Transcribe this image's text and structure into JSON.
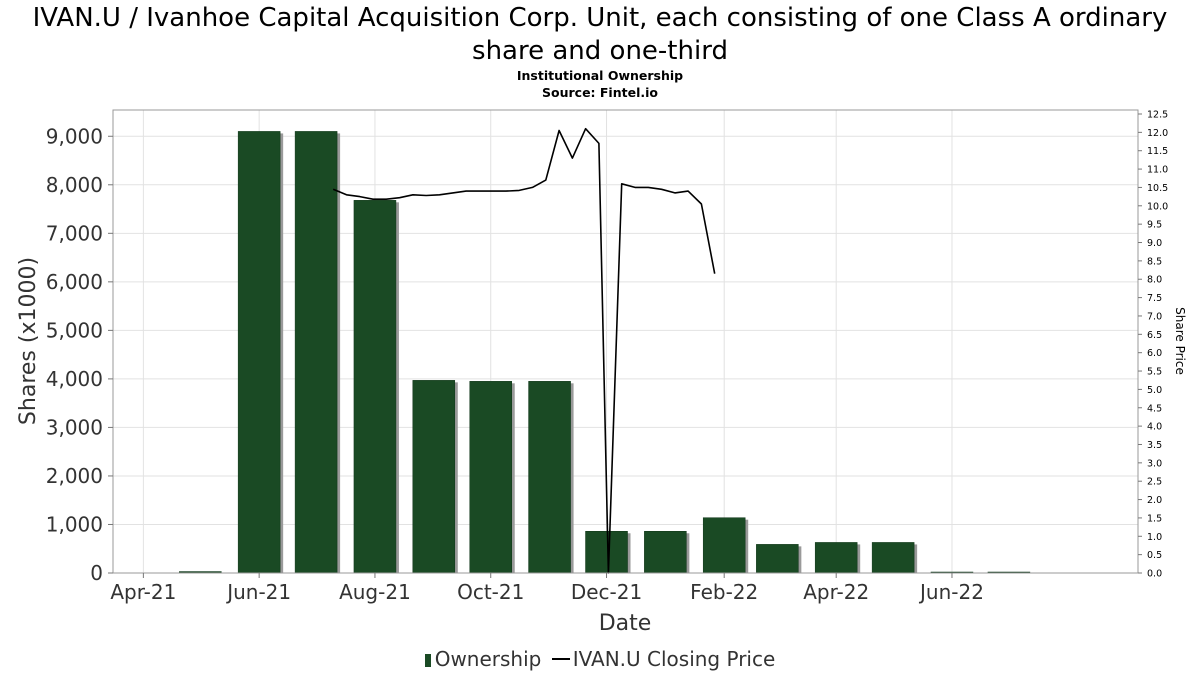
{
  "chart_data": {
    "type": "bar",
    "title": "IVAN.U / Ivanhoe Capital Acquisition Corp. Unit, each consisting of one Class A ordinary share and one-third",
    "subtitle_1": "Institutional Ownership",
    "subtitle_2": "Source: Fintel.io",
    "xlabel": "Date",
    "ylabel": "Shares (x1000)",
    "y2label": "Share Price",
    "ylim": [
      0,
      9500
    ],
    "y2lim": [
      0,
      12.5
    ],
    "grid": true,
    "legend_placement": "bottom-center",
    "x_ticks": [
      {
        "label": "Apr-21",
        "date": "2021-04-01"
      },
      {
        "label": "Jun-21",
        "date": "2021-06-01"
      },
      {
        "label": "Aug-21",
        "date": "2021-08-01"
      },
      {
        "label": "Oct-21",
        "date": "2021-10-01"
      },
      {
        "label": "Dec-21",
        "date": "2021-12-01"
      },
      {
        "label": "Feb-22",
        "date": "2022-02-01"
      },
      {
        "label": "Apr-22",
        "date": "2022-04-01"
      },
      {
        "label": "Jun-22",
        "date": "2022-06-01"
      }
    ],
    "x_range": [
      "2021-03-16",
      "2022-09-07"
    ],
    "y_ticks": [
      "0",
      "1,000",
      "2,000",
      "3,000",
      "4,000",
      "5,000",
      "6,000",
      "7,000",
      "8,000",
      "9,000"
    ],
    "y2_ticks": [
      "0.0",
      "0.5",
      "1.0",
      "1.5",
      "2.0",
      "2.5",
      "3.0",
      "3.5",
      "4.0",
      "4.5",
      "5.0",
      "5.5",
      "6.0",
      "6.5",
      "7.0",
      "7.5",
      "8.0",
      "8.5",
      "9.0",
      "9.5",
      "10.0",
      "10.5",
      "11.0",
      "11.5",
      "12.0",
      "12.5"
    ],
    "series": [
      {
        "name": "Ownership",
        "kind": "bar",
        "color": "#1a4a24",
        "points": [
          {
            "date": "2021-05-01",
            "value": 30
          },
          {
            "date": "2021-06-01",
            "value": 9100
          },
          {
            "date": "2021-07-01",
            "value": 9100
          },
          {
            "date": "2021-08-01",
            "value": 7680
          },
          {
            "date": "2021-09-01",
            "value": 3970
          },
          {
            "date": "2021-10-01",
            "value": 3950
          },
          {
            "date": "2021-11-01",
            "value": 3950
          },
          {
            "date": "2021-12-01",
            "value": 860
          },
          {
            "date": "2022-01-01",
            "value": 860
          },
          {
            "date": "2022-02-01",
            "value": 1140
          },
          {
            "date": "2022-03-01",
            "value": 590
          },
          {
            "date": "2022-04-01",
            "value": 630
          },
          {
            "date": "2022-05-01",
            "value": 630
          },
          {
            "date": "2022-06-01",
            "value": 10
          },
          {
            "date": "2022-07-01",
            "value": 10
          }
        ]
      },
      {
        "name": "IVAN.U Closing Price",
        "kind": "line",
        "color": "#000000",
        "points": [
          {
            "date": "2021-07-10",
            "value": 10.45
          },
          {
            "date": "2021-07-17",
            "value": 10.3
          },
          {
            "date": "2021-07-24",
            "value": 10.25
          },
          {
            "date": "2021-07-31",
            "value": 10.18
          },
          {
            "date": "2021-08-07",
            "value": 10.18
          },
          {
            "date": "2021-08-14",
            "value": 10.22
          },
          {
            "date": "2021-08-21",
            "value": 10.3
          },
          {
            "date": "2021-08-28",
            "value": 10.28
          },
          {
            "date": "2021-09-04",
            "value": 10.3
          },
          {
            "date": "2021-09-11",
            "value": 10.35
          },
          {
            "date": "2021-09-18",
            "value": 10.4
          },
          {
            "date": "2021-09-25",
            "value": 10.4
          },
          {
            "date": "2021-10-02",
            "value": 10.4
          },
          {
            "date": "2021-10-09",
            "value": 10.4
          },
          {
            "date": "2021-10-16",
            "value": 10.42
          },
          {
            "date": "2021-10-23",
            "value": 10.5
          },
          {
            "date": "2021-10-30",
            "value": 10.7
          },
          {
            "date": "2021-11-06",
            "value": 12.05
          },
          {
            "date": "2021-11-13",
            "value": 11.3
          },
          {
            "date": "2021-11-20",
            "value": 12.1
          },
          {
            "date": "2021-11-27",
            "value": 11.7
          },
          {
            "date": "2021-12-02",
            "value": 0.0
          },
          {
            "date": "2021-12-09",
            "value": 10.6
          },
          {
            "date": "2021-12-16",
            "value": 10.5
          },
          {
            "date": "2021-12-23",
            "value": 10.5
          },
          {
            "date": "2021-12-30",
            "value": 10.45
          },
          {
            "date": "2022-01-06",
            "value": 10.35
          },
          {
            "date": "2022-01-13",
            "value": 10.4
          },
          {
            "date": "2022-01-20",
            "value": 10.05
          },
          {
            "date": "2022-01-27",
            "value": 8.15
          }
        ]
      }
    ]
  }
}
